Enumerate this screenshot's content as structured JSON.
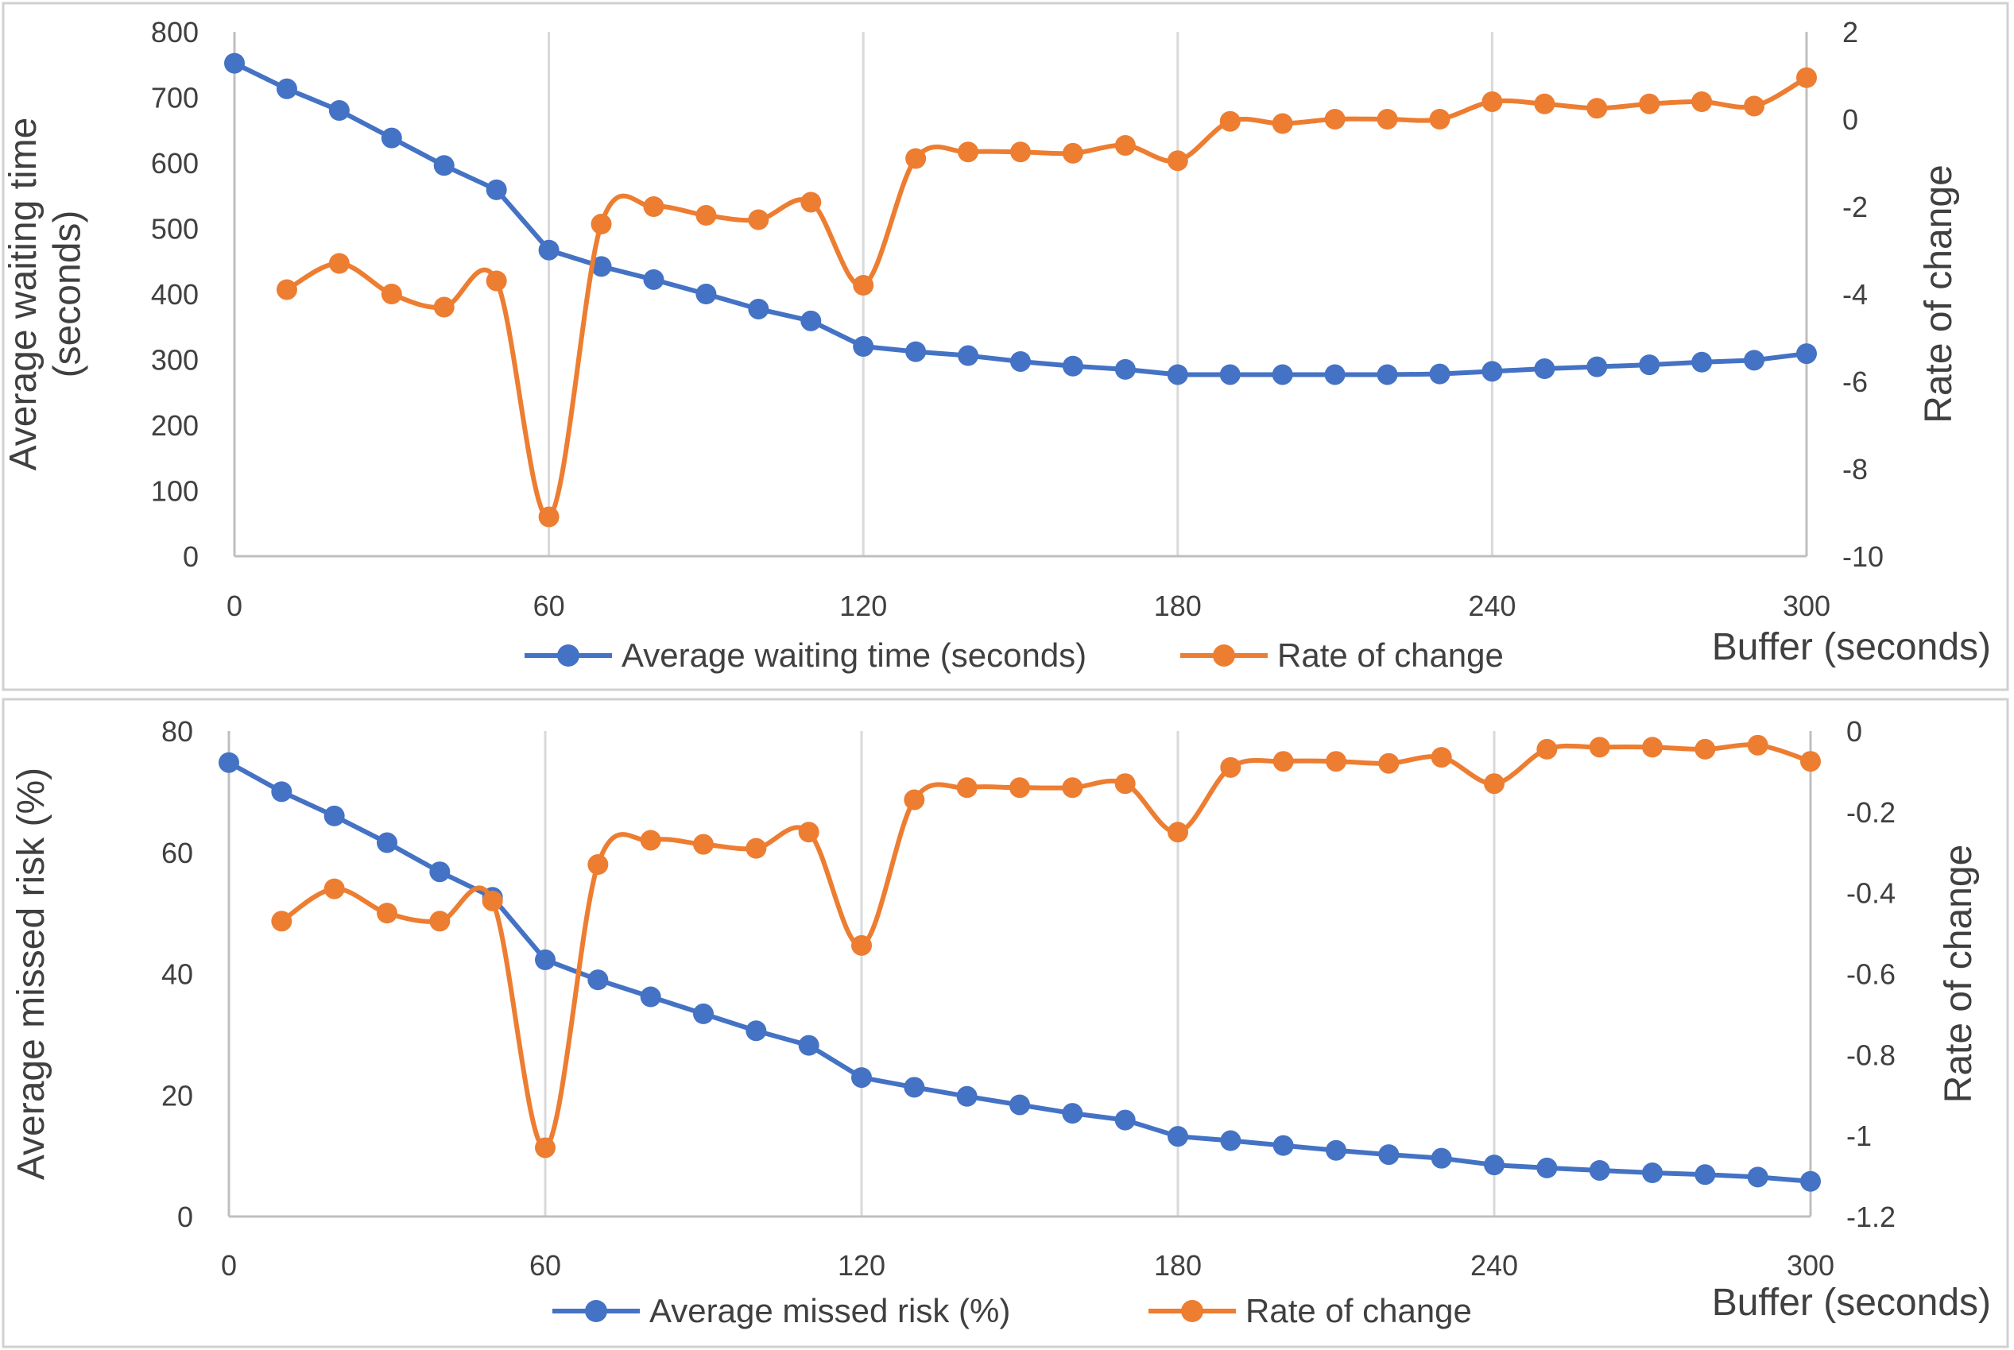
{
  "colors": {
    "blue": "#4472c4",
    "orange": "#ed7d31",
    "grid": "#d9d9d9",
    "text": "#404040"
  },
  "chart_data": [
    {
      "type": "line",
      "title": "",
      "xlabel": "Buffer (seconds)",
      "ylabel": "Average waiting time (seconds)",
      "y2label": "Rate of change",
      "xlim": [
        0,
        300
      ],
      "xticks": [
        0,
        60,
        120,
        180,
        240,
        300
      ],
      "ylim": [
        0,
        800
      ],
      "yticks": [
        0,
        100,
        200,
        300,
        400,
        500,
        600,
        700,
        800
      ],
      "y2lim": [
        -10,
        2
      ],
      "y2ticks": [
        -10,
        -8,
        -6,
        -4,
        -2,
        0,
        2
      ],
      "legend_position": "bottom",
      "grid": "vertical",
      "series": [
        {
          "name": "Average waiting time (seconds)",
          "axis": "left",
          "color": "#4472c4",
          "smooth": false,
          "x": [
            0,
            10,
            20,
            30,
            40,
            50,
            60,
            70,
            80,
            90,
            100,
            110,
            120,
            130,
            140,
            150,
            160,
            170,
            180,
            190,
            200,
            210,
            220,
            230,
            240,
            250,
            260,
            270,
            280,
            290,
            300
          ],
          "values": [
            752,
            713,
            680,
            638,
            596,
            559,
            467,
            442,
            422,
            400,
            377,
            359,
            320,
            312,
            306,
            297,
            290,
            285,
            277,
            277,
            277,
            277,
            277,
            278,
            282,
            286,
            289,
            292,
            296,
            299,
            309
          ]
        },
        {
          "name": "Rate of change",
          "axis": "right",
          "color": "#ed7d31",
          "smooth": true,
          "x": [
            10,
            20,
            30,
            40,
            50,
            60,
            70,
            80,
            90,
            100,
            110,
            120,
            130,
            140,
            150,
            160,
            170,
            180,
            190,
            200,
            210,
            220,
            230,
            240,
            250,
            260,
            270,
            280,
            290,
            300
          ],
          "values": [
            -3.9,
            -3.3,
            -4.0,
            -4.3,
            -3.7,
            -9.1,
            -2.4,
            -2.0,
            -2.2,
            -2.3,
            -1.9,
            -3.8,
            -0.9,
            -0.75,
            -0.75,
            -0.78,
            -0.6,
            -0.95,
            -0.05,
            -0.1,
            0.0,
            0.0,
            0.0,
            0.4,
            0.35,
            0.25,
            0.35,
            0.4,
            0.3,
            0.95
          ]
        }
      ]
    },
    {
      "type": "line",
      "title": "",
      "xlabel": "Buffer (seconds)",
      "ylabel": "Average missed risk (%)",
      "y2label": "Rate of change",
      "xlim": [
        0,
        300
      ],
      "xticks": [
        0,
        60,
        120,
        180,
        240,
        300
      ],
      "ylim": [
        0,
        80
      ],
      "yticks": [
        0,
        20,
        40,
        60,
        80
      ],
      "y2lim": [
        -1.2,
        0
      ],
      "y2ticks": [
        -1.2,
        -1,
        -0.8,
        -0.6,
        -0.4,
        -0.2,
        0
      ],
      "legend_position": "bottom",
      "grid": "vertical",
      "series": [
        {
          "name": "Average missed risk (%)",
          "axis": "left",
          "color": "#4472c4",
          "smooth": false,
          "x": [
            0,
            10,
            20,
            30,
            40,
            50,
            60,
            70,
            80,
            90,
            100,
            110,
            120,
            130,
            140,
            150,
            160,
            170,
            180,
            190,
            200,
            210,
            220,
            230,
            240,
            250,
            260,
            270,
            280,
            290,
            300
          ],
          "values": [
            74.8,
            70.0,
            66.0,
            61.6,
            56.8,
            52.6,
            42.3,
            39.0,
            36.2,
            33.4,
            30.6,
            28.2,
            22.9,
            21.3,
            19.8,
            18.4,
            17.0,
            15.9,
            13.2,
            12.5,
            11.7,
            10.9,
            10.2,
            9.6,
            8.5,
            8.0,
            7.6,
            7.2,
            6.9,
            6.5,
            5.8
          ]
        },
        {
          "name": "Rate of change",
          "axis": "right",
          "color": "#ed7d31",
          "smooth": true,
          "x": [
            10,
            20,
            30,
            40,
            50,
            60,
            70,
            80,
            90,
            100,
            110,
            120,
            130,
            140,
            150,
            160,
            170,
            180,
            190,
            200,
            210,
            220,
            230,
            240,
            250,
            260,
            270,
            280,
            290,
            300
          ],
          "values": [
            -0.47,
            -0.39,
            -0.45,
            -0.47,
            -0.42,
            -1.03,
            -0.33,
            -0.27,
            -0.28,
            -0.29,
            -0.25,
            -0.53,
            -0.17,
            -0.14,
            -0.14,
            -0.14,
            -0.13,
            -0.25,
            -0.09,
            -0.075,
            -0.075,
            -0.08,
            -0.065,
            -0.13,
            -0.045,
            -0.04,
            -0.04,
            -0.045,
            -0.035,
            -0.075
          ]
        }
      ]
    }
  ]
}
